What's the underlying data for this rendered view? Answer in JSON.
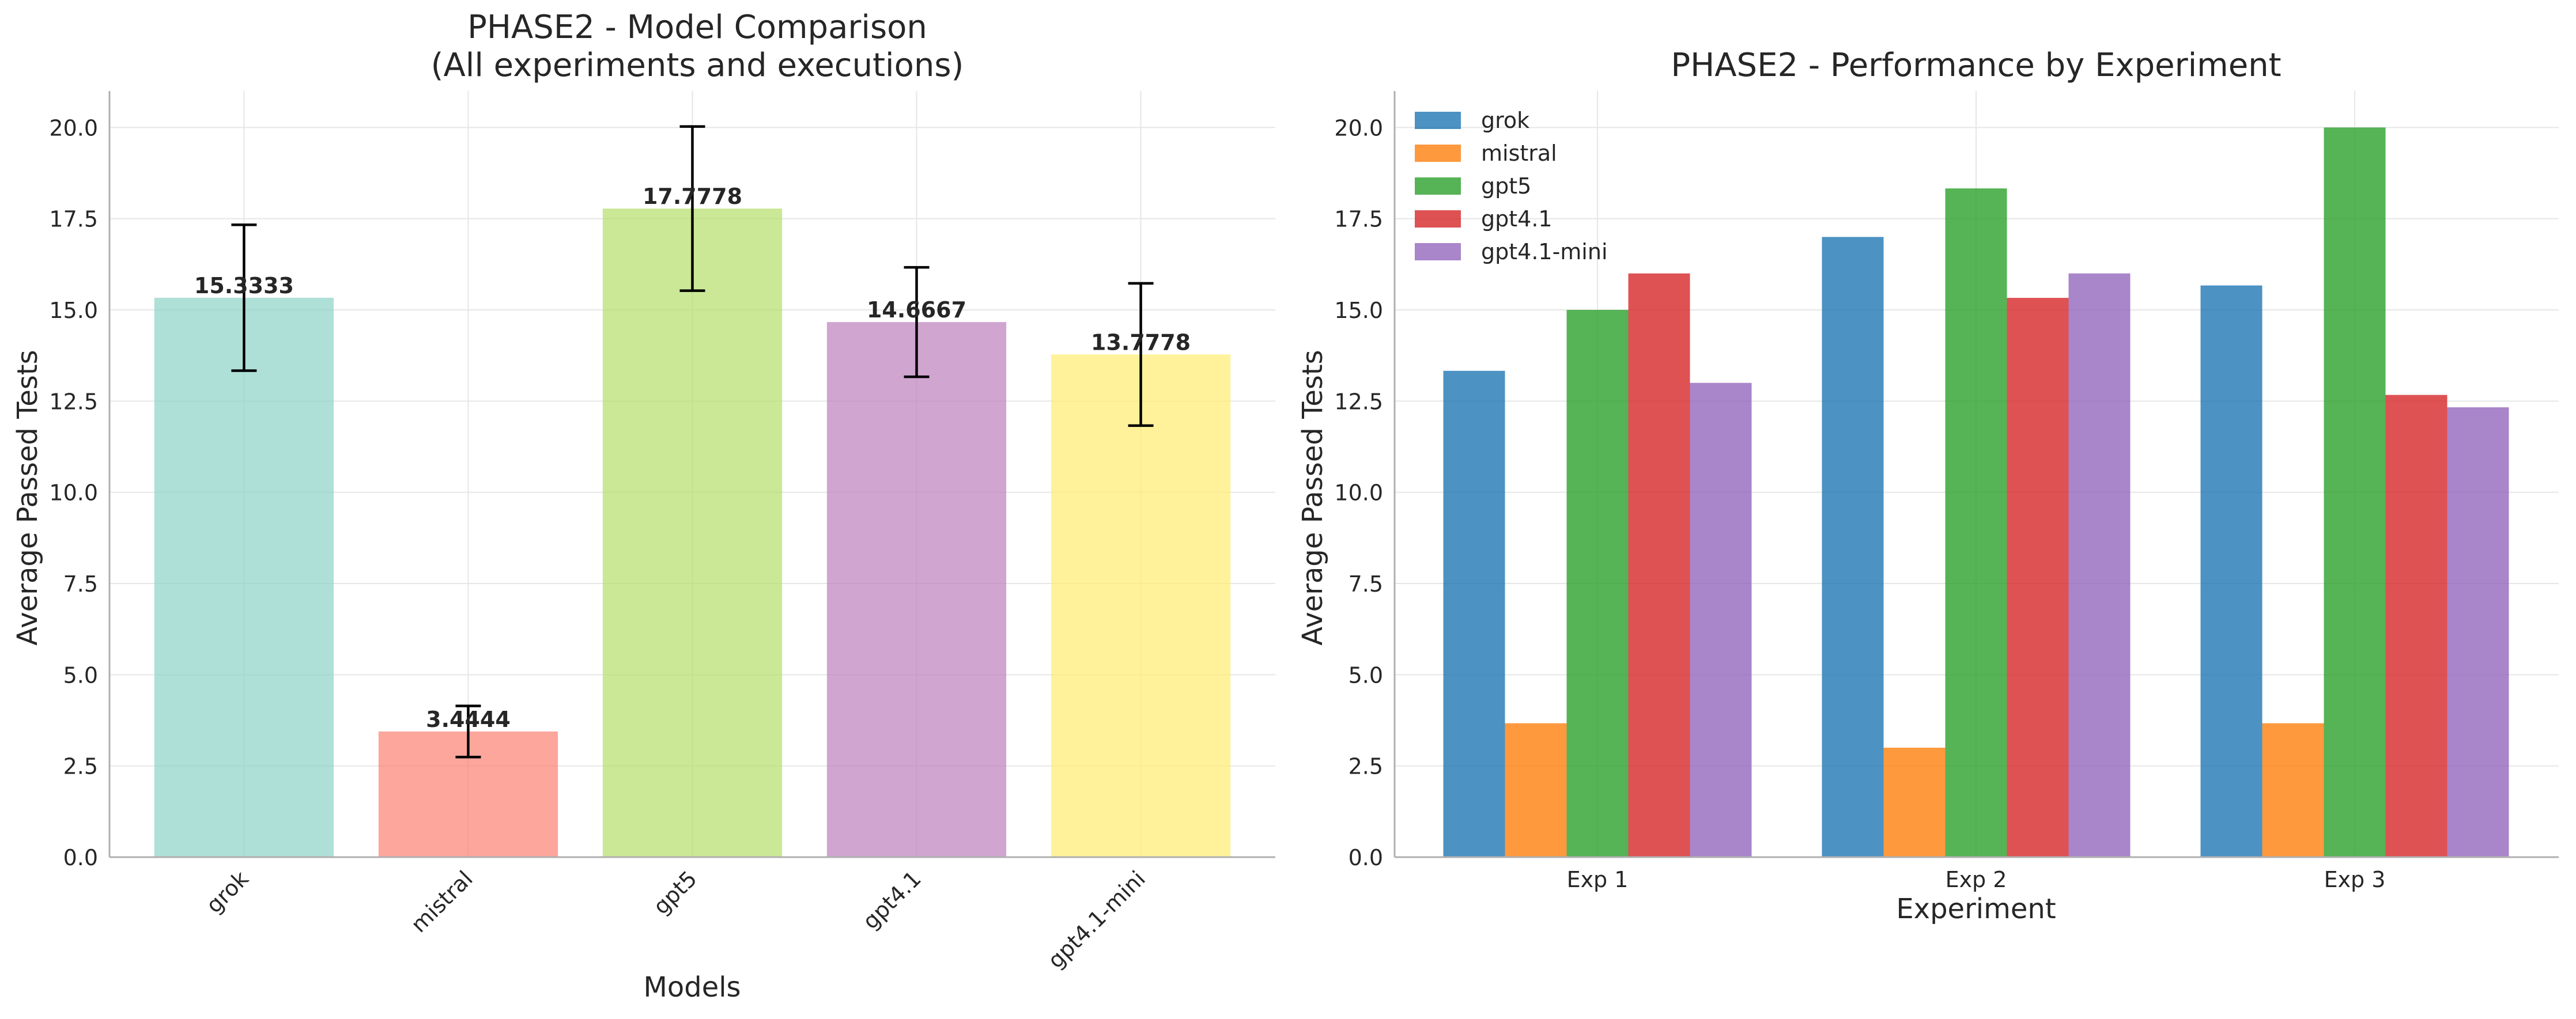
{
  "chart_data": [
    {
      "type": "bar",
      "title": "PHASE2 - Model Comparison",
      "subtitle": "(All experiments and executions)",
      "xlabel": "Models",
      "ylabel": "Average Passed Tests",
      "categories": [
        "grok",
        "mistral",
        "gpt5",
        "gpt4.1",
        "gpt4.1-mini"
      ],
      "values": [
        15.3333,
        3.4444,
        17.7778,
        14.6667,
        13.7778
      ],
      "value_labels": [
        "15.3333",
        "3.4444",
        "17.7778",
        "14.6667",
        "13.7778"
      ],
      "error": [
        2.0,
        0.7,
        2.25,
        1.5,
        1.95
      ],
      "colors": [
        "#8dd3c7",
        "#fb8072",
        "#b3de69",
        "#bc80bd",
        "#ffed6f"
      ],
      "ylim": [
        0,
        21
      ],
      "yticks": [
        0,
        2.5,
        5,
        7.5,
        10,
        12.5,
        15,
        17.5,
        20
      ],
      "ytick_labels": [
        "0.0",
        "2.5",
        "5.0",
        "7.5",
        "10.0",
        "12.5",
        "15.0",
        "17.5",
        "20.0"
      ],
      "grid": true,
      "legend": "none"
    },
    {
      "type": "bar",
      "title": "PHASE2 - Performance by Experiment",
      "xlabel": "Experiment",
      "ylabel": "Average Passed Tests",
      "categories": [
        "Exp 1",
        "Exp 2",
        "Exp 3"
      ],
      "series": [
        {
          "name": "grok",
          "color": "#1f77b4",
          "values": [
            13.33,
            17.0,
            15.67
          ]
        },
        {
          "name": "mistral",
          "color": "#ff7f0e",
          "values": [
            3.67,
            3.0,
            3.67
          ]
        },
        {
          "name": "gpt5",
          "color": "#2ca02c",
          "values": [
            15.0,
            18.33,
            20.0
          ]
        },
        {
          "name": "gpt4.1",
          "color": "#d62728",
          "values": [
            16.0,
            15.33,
            12.67
          ]
        },
        {
          "name": "gpt4.1-mini",
          "color": "#9467bd",
          "values": [
            13.0,
            16.0,
            12.33
          ]
        }
      ],
      "ylim": [
        0,
        21
      ],
      "yticks": [
        0,
        2.5,
        5,
        7.5,
        10,
        12.5,
        15,
        17.5,
        20
      ],
      "ytick_labels": [
        "0.0",
        "2.5",
        "5.0",
        "7.5",
        "10.0",
        "12.5",
        "15.0",
        "17.5",
        "20.0"
      ],
      "grid": true,
      "legend": "top-left"
    }
  ]
}
